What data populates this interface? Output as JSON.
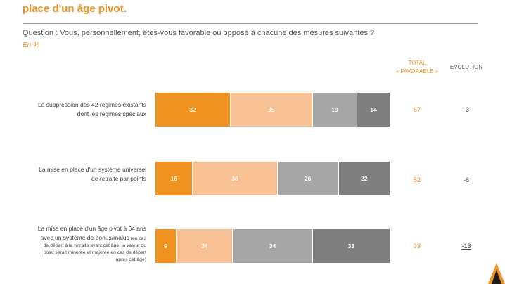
{
  "header": {
    "title_cropped": "",
    "title": "place d'un âge pivot.",
    "question": "Question : Vous, personnellement, êtes-vous favorable ou opposé à chacune des mesures suivantes ?",
    "unit": "En %"
  },
  "columns": {
    "total_line1": "TOTAL",
    "total_line2": "« FAVORABLE »",
    "evolution": "EVOLUTION"
  },
  "colors": {
    "accent": "#f0921f",
    "segments": [
      "#f0921f",
      "#f9c294",
      "#a6a6a6",
      "#7f7f7f"
    ],
    "segment_text": [
      "#ffffff",
      "#ffffff",
      "#ffffff",
      "#ffffff"
    ]
  },
  "chart_data": {
    "type": "bar",
    "orientation": "horizontal",
    "stacked": true,
    "xlim": [
      0,
      100
    ],
    "categories": [
      {
        "label_lines": [
          "La suppression des 42 régimes existants",
          "dont les régimes spéciaux"
        ],
        "note_lines": [],
        "values": [
          32,
          35,
          19,
          14
        ],
        "total_favorable": 67,
        "evolution": "-3"
      },
      {
        "label_lines": [
          "La mise en place d'un système universel",
          "de retraite par points"
        ],
        "note_lines": [],
        "values": [
          16,
          36,
          26,
          22
        ],
        "total_favorable": 52,
        "evolution": "-6"
      },
      {
        "label_lines": [
          "La mise en place d'un âge pivot à 64 ans"
        ],
        "label_line2_main": "avec un système de bonus/malus",
        "label_line2_note": " (en cas",
        "note_lines": [
          "de départ à la retraite avant cet âge, la valeur du",
          "point serait minorée et majorée en cas de départ",
          "après cet âge)"
        ],
        "values": [
          9,
          24,
          34,
          33
        ],
        "total_favorable": 33,
        "evolution": "-13"
      }
    ]
  }
}
